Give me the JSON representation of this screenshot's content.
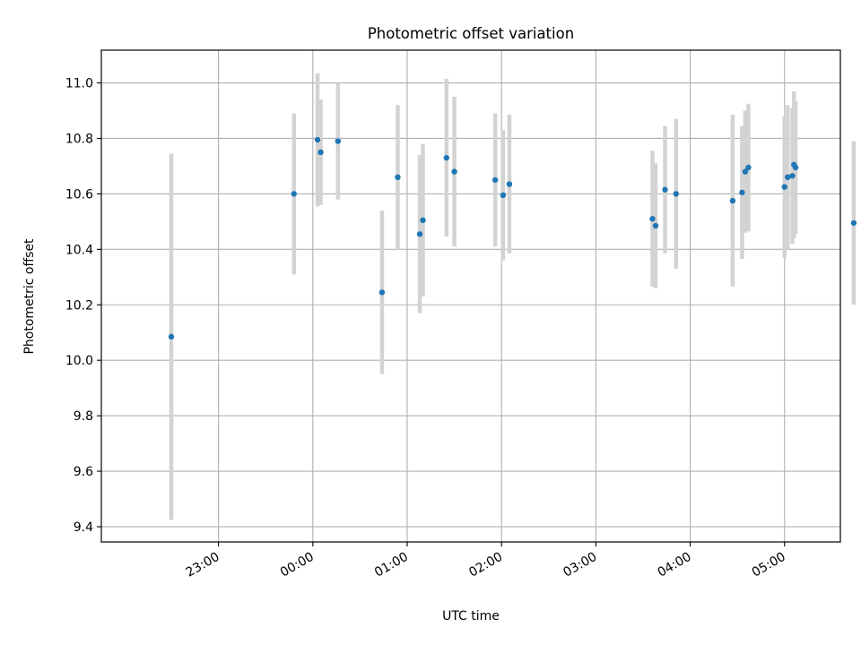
{
  "chart_data": {
    "type": "scatter",
    "title": "Photometric offset variation",
    "xlabel": "UTC time",
    "ylabel": "Photometric offset",
    "grid": true,
    "x_range_minutes_since_22_00": [
      -14.5,
      455.5
    ],
    "ylim": [
      9.345,
      11.118
    ],
    "x_ticks": [
      "23:00",
      "00:00",
      "01:00",
      "02:00",
      "03:00",
      "04:00",
      "05:00"
    ],
    "y_ticks": [
      "9.4",
      "9.6",
      "9.8",
      "10.0",
      "10.2",
      "10.4",
      "10.6",
      "10.8",
      "11.0"
    ],
    "colors": {
      "points": "#1f77b4",
      "errorbars": "#d3d3d3",
      "grid": "#b0b0b0"
    },
    "points": [
      {
        "t": "22:30",
        "y": 10.085,
        "err": 0.66
      },
      {
        "t": "23:48",
        "y": 10.6,
        "err": 0.29
      },
      {
        "t": "00:03",
        "y": 10.795,
        "err": 0.24
      },
      {
        "t": "00:05",
        "y": 10.75,
        "err": 0.19
      },
      {
        "t": "00:16",
        "y": 10.79,
        "err": 0.21
      },
      {
        "t": "00:44",
        "y": 10.245,
        "err": 0.295
      },
      {
        "t": "00:54",
        "y": 10.66,
        "err": 0.26
      },
      {
        "t": "01:08",
        "y": 10.455,
        "err": 0.285
      },
      {
        "t": "01:10",
        "y": 10.505,
        "err": 0.275
      },
      {
        "t": "01:25",
        "y": 10.73,
        "err": 0.285
      },
      {
        "t": "01:30",
        "y": 10.68,
        "err": 0.27
      },
      {
        "t": "01:56",
        "y": 10.65,
        "err": 0.24
      },
      {
        "t": "02:01",
        "y": 10.595,
        "err": 0.235
      },
      {
        "t": "02:05",
        "y": 10.635,
        "err": 0.25
      },
      {
        "t": "03:36",
        "y": 10.51,
        "err": 0.245
      },
      {
        "t": "03:38",
        "y": 10.485,
        "err": 0.225
      },
      {
        "t": "03:44",
        "y": 10.615,
        "err": 0.23
      },
      {
        "t": "03:51",
        "y": 10.6,
        "err": 0.27
      },
      {
        "t": "04:27",
        "y": 10.575,
        "err": 0.31
      },
      {
        "t": "04:33",
        "y": 10.605,
        "err": 0.24
      },
      {
        "t": "04:35",
        "y": 10.68,
        "err": 0.22
      },
      {
        "t": "04:37",
        "y": 10.695,
        "err": 0.23
      },
      {
        "t": "05:00",
        "y": 10.625,
        "err": 0.255
      },
      {
        "t": "05:02",
        "y": 10.66,
        "err": 0.26
      },
      {
        "t": "05:05",
        "y": 10.665,
        "err": 0.245
      },
      {
        "t": "05:06",
        "y": 10.705,
        "err": 0.265
      },
      {
        "t": "05:07",
        "y": 10.695,
        "err": 0.24
      },
      {
        "t": "05:44",
        "y": 10.495,
        "err": 0.295
      }
    ]
  }
}
